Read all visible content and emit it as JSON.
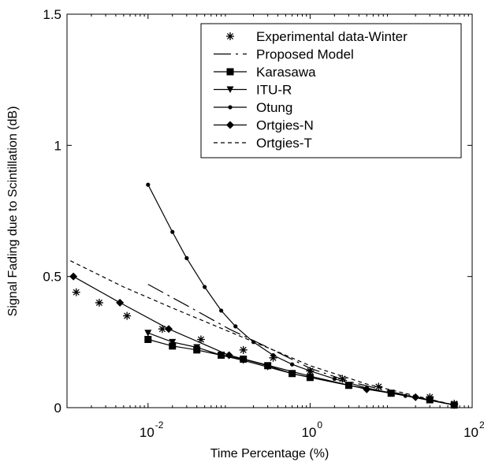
{
  "chart_data": {
    "type": "line",
    "xlabel": "Time Percentage (%)",
    "ylabel": "Signal Fading due to Scintillation (dB)",
    "x_scale": "log",
    "xlim": [
      0.001,
      100
    ],
    "ylim": [
      0,
      1.5
    ],
    "x_ticks": [
      {
        "value": 0.01,
        "base": "10",
        "exp": "-2"
      },
      {
        "value": 1,
        "base": "10",
        "exp": "0"
      },
      {
        "value": 100,
        "base": "10",
        "exp": "2"
      }
    ],
    "y_ticks": [
      {
        "value": 0,
        "label": "0"
      },
      {
        "value": 0.5,
        "label": "0.5"
      },
      {
        "value": 1,
        "label": "1"
      },
      {
        "value": 1.5,
        "label": "1.5"
      }
    ],
    "grid": false,
    "legend_position": "top-right",
    "series": [
      {
        "name": "Experimental data-Winter",
        "style": "asterisk",
        "points": [
          [
            0.0013,
            0.44
          ],
          [
            0.0025,
            0.4
          ],
          [
            0.0055,
            0.35
          ],
          [
            0.015,
            0.3
          ],
          [
            0.045,
            0.26
          ],
          [
            0.15,
            0.22
          ],
          [
            0.35,
            0.19
          ],
          [
            1.0,
            0.14
          ],
          [
            2.5,
            0.11
          ],
          [
            7.0,
            0.08
          ],
          [
            30,
            0.04
          ],
          [
            60,
            0.015
          ]
        ]
      },
      {
        "name": "Proposed Model",
        "style": "dashdot",
        "points": [
          [
            0.01,
            0.47
          ],
          [
            0.03,
            0.39
          ],
          [
            0.1,
            0.3
          ],
          [
            0.3,
            0.23
          ],
          [
            1,
            0.15
          ],
          [
            3,
            0.1
          ],
          [
            10,
            0.06
          ],
          [
            60,
            0.01
          ]
        ]
      },
      {
        "name": "Karasawa",
        "style": "square",
        "points": [
          [
            0.01,
            0.26
          ],
          [
            0.02,
            0.235
          ],
          [
            0.04,
            0.22
          ],
          [
            0.08,
            0.2
          ],
          [
            0.15,
            0.185
          ],
          [
            0.3,
            0.16
          ],
          [
            0.6,
            0.13
          ],
          [
            1,
            0.115
          ],
          [
            3,
            0.085
          ],
          [
            10,
            0.055
          ],
          [
            30,
            0.03
          ],
          [
            60,
            0.01
          ]
        ]
      },
      {
        "name": "ITU-R",
        "style": "triangle",
        "points": [
          [
            0.01,
            0.285
          ],
          [
            0.02,
            0.25
          ],
          [
            0.04,
            0.23
          ],
          [
            0.08,
            0.2
          ],
          [
            0.15,
            0.18
          ],
          [
            0.3,
            0.155
          ],
          [
            0.6,
            0.13
          ],
          [
            1,
            0.115
          ],
          [
            3,
            0.085
          ],
          [
            10,
            0.055
          ],
          [
            30,
            0.03
          ],
          [
            60,
            0.01
          ]
        ]
      },
      {
        "name": "Otung",
        "style": "dot",
        "points": [
          [
            0.01,
            0.85
          ],
          [
            0.02,
            0.67
          ],
          [
            0.03,
            0.57
          ],
          [
            0.05,
            0.46
          ],
          [
            0.08,
            0.37
          ],
          [
            0.12,
            0.31
          ],
          [
            0.2,
            0.25
          ],
          [
            0.35,
            0.2
          ],
          [
            0.6,
            0.165
          ],
          [
            1,
            0.14
          ],
          [
            2,
            0.11
          ],
          [
            5,
            0.075
          ],
          [
            15,
            0.045
          ],
          [
            60,
            0.01
          ]
        ]
      },
      {
        "name": "Ortgies-N",
        "style": "diamond",
        "points": [
          [
            0.0012,
            0.5
          ],
          [
            0.0045,
            0.4
          ],
          [
            0.018,
            0.3
          ],
          [
            0.1,
            0.2
          ],
          [
            1,
            0.12
          ],
          [
            5,
            0.07
          ],
          [
            20,
            0.04
          ],
          [
            60,
            0.01
          ]
        ]
      },
      {
        "name": "Ortgies-T",
        "style": "dashed",
        "points": [
          [
            0.0011,
            0.56
          ],
          [
            0.005,
            0.46
          ],
          [
            0.02,
            0.38
          ],
          [
            0.1,
            0.29
          ],
          [
            0.5,
            0.2
          ],
          [
            1,
            0.16
          ],
          [
            5,
            0.09
          ],
          [
            20,
            0.045
          ],
          [
            60,
            0.01
          ]
        ]
      }
    ]
  }
}
